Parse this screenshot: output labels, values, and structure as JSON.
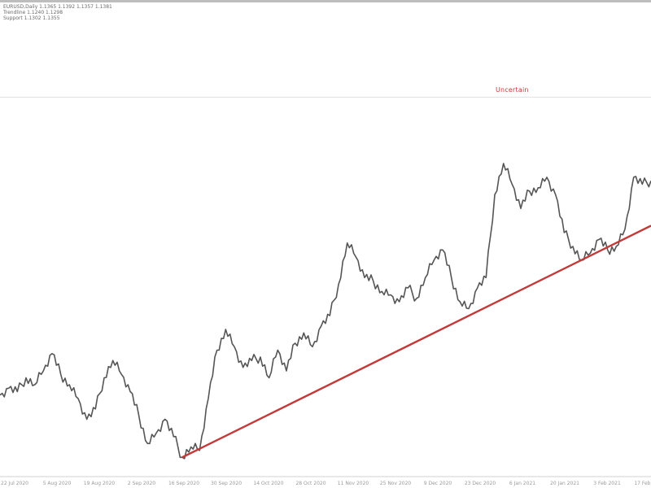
{
  "header": {
    "symbol_line": "EURUSD,Daily 1.1365 1.1392 1.1357 1.1381",
    "info_line": "Trendline 1.1240 1.1298",
    "extra_line": "Support 1.1302 1.1355"
  },
  "indicator": {
    "label": "Uncertain"
  },
  "colors": {
    "price": "#555555",
    "trendline": "#c23a3a",
    "axis": "#9a9a9a"
  },
  "chart_data": {
    "type": "line",
    "title": "",
    "xlabel": "",
    "ylabel": "",
    "grid": false,
    "legend": "none",
    "ylim": [
      0,
      100
    ],
    "x_ticks": [
      "22 Jul 2020",
      "5 Aug 2020",
      "19 Aug 2020",
      "2 Sep 2020",
      "16 Sep 2020",
      "30 Sep 2020",
      "14 Oct 2020",
      "28 Oct 2020",
      "11 Nov 2020",
      "25 Nov 2020",
      "9 Dec 2020",
      "23 Dec 2020",
      "6 Jan 2021",
      "20 Jan 2021",
      "3 Feb 2021",
      "17 Feb 2021"
    ],
    "series": [
      {
        "values": [
          21,
          23,
          22,
          26,
          24,
          28,
          33,
          27,
          24,
          20,
          14,
          17,
          26,
          31,
          27,
          22,
          15,
          7,
          10,
          14,
          9,
          3,
          6,
          5,
          20,
          34,
          40,
          35,
          29,
          31,
          32,
          26,
          34,
          28,
          36,
          39,
          35,
          41,
          44,
          53,
          65,
          61,
          55,
          54,
          51,
          50,
          48,
          52,
          49,
          55,
          60,
          63,
          55,
          48,
          46,
          52,
          55,
          79,
          88,
          82,
          75,
          80,
          81,
          84,
          79,
          68,
          64,
          60,
          62,
          66,
          63,
          64,
          69,
          84,
          82,
          83
        ]
      }
    ],
    "trendline": {
      "from": {
        "index": 21,
        "value": 3
      },
      "to": {
        "index": 75,
        "value": 70
      }
    },
    "annotations": [
      "Uncertain"
    ]
  }
}
